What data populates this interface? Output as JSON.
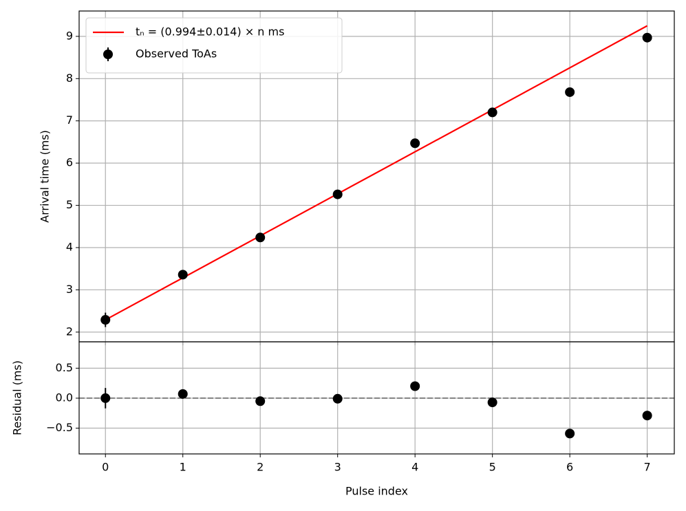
{
  "chart_data": [
    {
      "type": "errorbar",
      "ylabel": "Arrival time (ms)",
      "xlim": [
        -0.34,
        7.35
      ],
      "ylim": [
        1.77,
        9.6
      ],
      "yticks": [
        2,
        3,
        4,
        5,
        6,
        7,
        8,
        9
      ],
      "grid": true,
      "legend": "upper left",
      "series": [
        {
          "name": "tₙ = (0.994±0.014) × n  ms",
          "type": "line",
          "color": "#ff0000",
          "x": [
            0,
            7
          ],
          "values": [
            2.29,
            9.25
          ]
        },
        {
          "name": "Observed ToAs",
          "type": "errorbar",
          "color": "#000000",
          "x": [
            0,
            1,
            2,
            3,
            4,
            5,
            6,
            7
          ],
          "values": [
            2.29,
            3.36,
            4.24,
            5.26,
            6.47,
            7.2,
            7.68,
            8.97
          ],
          "errors": [
            0.17,
            0.01,
            0.01,
            0.01,
            0.01,
            0.01,
            0.01,
            0.01
          ]
        }
      ]
    },
    {
      "type": "errorbar",
      "xlabel": "Pulse index",
      "ylabel": "Residual (ms)",
      "xlim": [
        -0.34,
        7.35
      ],
      "ylim": [
        -0.93,
        0.94
      ],
      "xticks": [
        0,
        1,
        2,
        3,
        4,
        5,
        6,
        7
      ],
      "yticks": [
        {
          "value": -0.5,
          "label": "−0.5"
        },
        {
          "value": 0,
          "label": "0.0"
        },
        0.5
      ],
      "grid": true,
      "reference_line": 0,
      "reference_color": "#808080",
      "series": [
        {
          "type": "errorbar",
          "color": "#000000",
          "x": [
            0,
            1,
            2,
            3,
            4,
            5,
            6,
            7
          ],
          "values": [
            0.0,
            0.07,
            -0.05,
            -0.01,
            0.2,
            -0.07,
            -0.59,
            -0.29
          ],
          "errors": [
            0.17,
            0.01,
            0.01,
            0.01,
            0.01,
            0.01,
            0.01,
            0.01
          ]
        }
      ]
    }
  ]
}
